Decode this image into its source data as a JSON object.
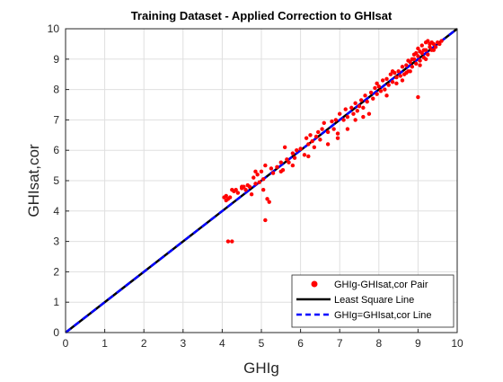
{
  "chart_data": {
    "type": "scatter",
    "title": "Training Dataset - Applied Correction to GHIsat",
    "xlabel": "GHIg",
    "ylabel": "GHIsat,cor",
    "xlim": [
      0,
      10
    ],
    "ylim": [
      0,
      10
    ],
    "x_ticks": [
      "0",
      "1",
      "2",
      "3",
      "4",
      "5",
      "6",
      "7",
      "8",
      "9",
      "10"
    ],
    "y_ticks": [
      "0",
      "1",
      "2",
      "3",
      "4",
      "5",
      "6",
      "7",
      "8",
      "9",
      "10"
    ],
    "grid": true,
    "legend_position": "bottom-right",
    "series": [
      {
        "name": "GHIg-GHIsat,cor Pair",
        "kind": "points",
        "color": "#ff0000",
        "points": [
          [
            4.05,
            4.45
          ],
          [
            4.1,
            4.5
          ],
          [
            4.1,
            4.35
          ],
          [
            4.15,
            4.4
          ],
          [
            4.2,
            4.45
          ],
          [
            4.25,
            4.7
          ],
          [
            4.3,
            4.65
          ],
          [
            4.35,
            4.7
          ],
          [
            4.4,
            4.6
          ],
          [
            4.5,
            4.75
          ],
          [
            4.55,
            4.8
          ],
          [
            4.6,
            4.7
          ],
          [
            4.65,
            4.85
          ],
          [
            4.7,
            4.8
          ],
          [
            4.75,
            4.55
          ],
          [
            4.8,
            5.1
          ],
          [
            4.85,
            4.9
          ],
          [
            4.9,
            5.2
          ],
          [
            4.95,
            4.95
          ],
          [
            5.0,
            5.3
          ],
          [
            5.05,
            5.05
          ],
          [
            5.1,
            5.5
          ],
          [
            5.15,
            4.4
          ],
          [
            5.2,
            4.3
          ],
          [
            5.25,
            5.4
          ],
          [
            5.3,
            5.25
          ],
          [
            5.4,
            5.45
          ],
          [
            5.5,
            5.6
          ],
          [
            5.55,
            5.35
          ],
          [
            5.6,
            6.1
          ],
          [
            5.65,
            5.7
          ],
          [
            5.7,
            5.6
          ],
          [
            5.8,
            5.9
          ],
          [
            5.85,
            5.75
          ],
          [
            5.9,
            6.0
          ],
          [
            6.0,
            6.05
          ],
          [
            6.1,
            5.85
          ],
          [
            6.15,
            6.4
          ],
          [
            6.2,
            6.2
          ],
          [
            6.25,
            6.5
          ],
          [
            6.3,
            6.3
          ],
          [
            6.35,
            6.1
          ],
          [
            6.4,
            6.45
          ],
          [
            6.45,
            6.6
          ],
          [
            6.5,
            6.35
          ],
          [
            6.55,
            6.7
          ],
          [
            6.6,
            6.9
          ],
          [
            6.7,
            6.6
          ],
          [
            6.8,
            6.95
          ],
          [
            6.85,
            6.7
          ],
          [
            6.9,
            7.0
          ],
          [
            6.95,
            6.55
          ],
          [
            7.0,
            7.2
          ],
          [
            7.1,
            7.0
          ],
          [
            7.15,
            7.35
          ],
          [
            7.2,
            7.1
          ],
          [
            7.3,
            7.4
          ],
          [
            7.35,
            7.2
          ],
          [
            7.4,
            7.55
          ],
          [
            7.45,
            7.3
          ],
          [
            7.5,
            7.45
          ],
          [
            7.55,
            7.65
          ],
          [
            7.6,
            7.4
          ],
          [
            7.65,
            7.8
          ],
          [
            7.7,
            7.6
          ],
          [
            7.75,
            7.2
          ],
          [
            7.8,
            7.9
          ],
          [
            7.85,
            7.7
          ],
          [
            7.9,
            8.05
          ],
          [
            7.95,
            7.85
          ],
          [
            8.0,
            8.1
          ],
          [
            8.05,
            7.95
          ],
          [
            8.1,
            8.3
          ],
          [
            8.15,
            8.0
          ],
          [
            8.2,
            8.35
          ],
          [
            8.25,
            8.15
          ],
          [
            8.3,
            8.5
          ],
          [
            8.35,
            8.25
          ],
          [
            8.4,
            8.55
          ],
          [
            8.45,
            8.4
          ],
          [
            8.5,
            8.6
          ],
          [
            8.55,
            8.45
          ],
          [
            8.6,
            8.75
          ],
          [
            8.65,
            8.5
          ],
          [
            8.7,
            8.8
          ],
          [
            8.75,
            8.6
          ],
          [
            8.8,
            8.9
          ],
          [
            8.85,
            8.75
          ],
          [
            8.9,
            9.0
          ],
          [
            8.95,
            8.85
          ],
          [
            9.0,
            9.1
          ],
          [
            9.05,
            8.95
          ],
          [
            9.1,
            9.2
          ],
          [
            9.15,
            9.05
          ],
          [
            9.2,
            9.3
          ],
          [
            9.25,
            9.15
          ],
          [
            9.3,
            9.4
          ],
          [
            9.35,
            9.3
          ],
          [
            9.4,
            9.5
          ],
          [
            9.45,
            9.4
          ],
          [
            9.5,
            9.55
          ],
          [
            9.55,
            9.5
          ],
          [
            9.6,
            9.6
          ],
          [
            9.0,
            7.75
          ],
          [
            9.05,
            8.8
          ],
          [
            8.95,
            9.2
          ],
          [
            9.1,
            9.45
          ],
          [
            9.2,
            9.55
          ],
          [
            9.25,
            9.6
          ],
          [
            9.3,
            9.5
          ],
          [
            9.0,
            9.35
          ],
          [
            8.9,
            9.15
          ],
          [
            9.15,
            9.3
          ],
          [
            9.2,
            9.0
          ],
          [
            8.85,
            9.0
          ],
          [
            9.05,
            9.25
          ],
          [
            4.15,
            3.0
          ],
          [
            4.25,
            3.0
          ],
          [
            5.1,
            3.7
          ],
          [
            5.05,
            4.7
          ],
          [
            8.6,
            8.3
          ],
          [
            8.8,
            8.6
          ],
          [
            8.45,
            8.2
          ],
          [
            7.6,
            7.1
          ],
          [
            7.2,
            6.7
          ],
          [
            6.2,
            5.8
          ],
          [
            5.8,
            5.5
          ],
          [
            5.5,
            5.3
          ],
          [
            4.85,
            5.3
          ],
          [
            4.5,
            4.8
          ],
          [
            6.7,
            6.2
          ],
          [
            6.95,
            6.4
          ],
          [
            8.2,
            7.8
          ],
          [
            7.4,
            7.0
          ],
          [
            9.4,
            9.3
          ],
          [
            9.35,
            9.55
          ],
          [
            8.75,
            8.95
          ],
          [
            8.7,
            8.55
          ],
          [
            7.95,
            8.2
          ],
          [
            8.35,
            8.6
          ]
        ]
      },
      {
        "name": "Least Square Line",
        "kind": "line",
        "color": "#000000",
        "dash": false,
        "points": [
          [
            0,
            0
          ],
          [
            10,
            10
          ]
        ]
      },
      {
        "name": "GHIg=GHIsat,cor Line",
        "kind": "line",
        "color": "#0000ff",
        "dash": true,
        "points": [
          [
            0,
            0
          ],
          [
            10,
            10
          ]
        ]
      }
    ]
  }
}
